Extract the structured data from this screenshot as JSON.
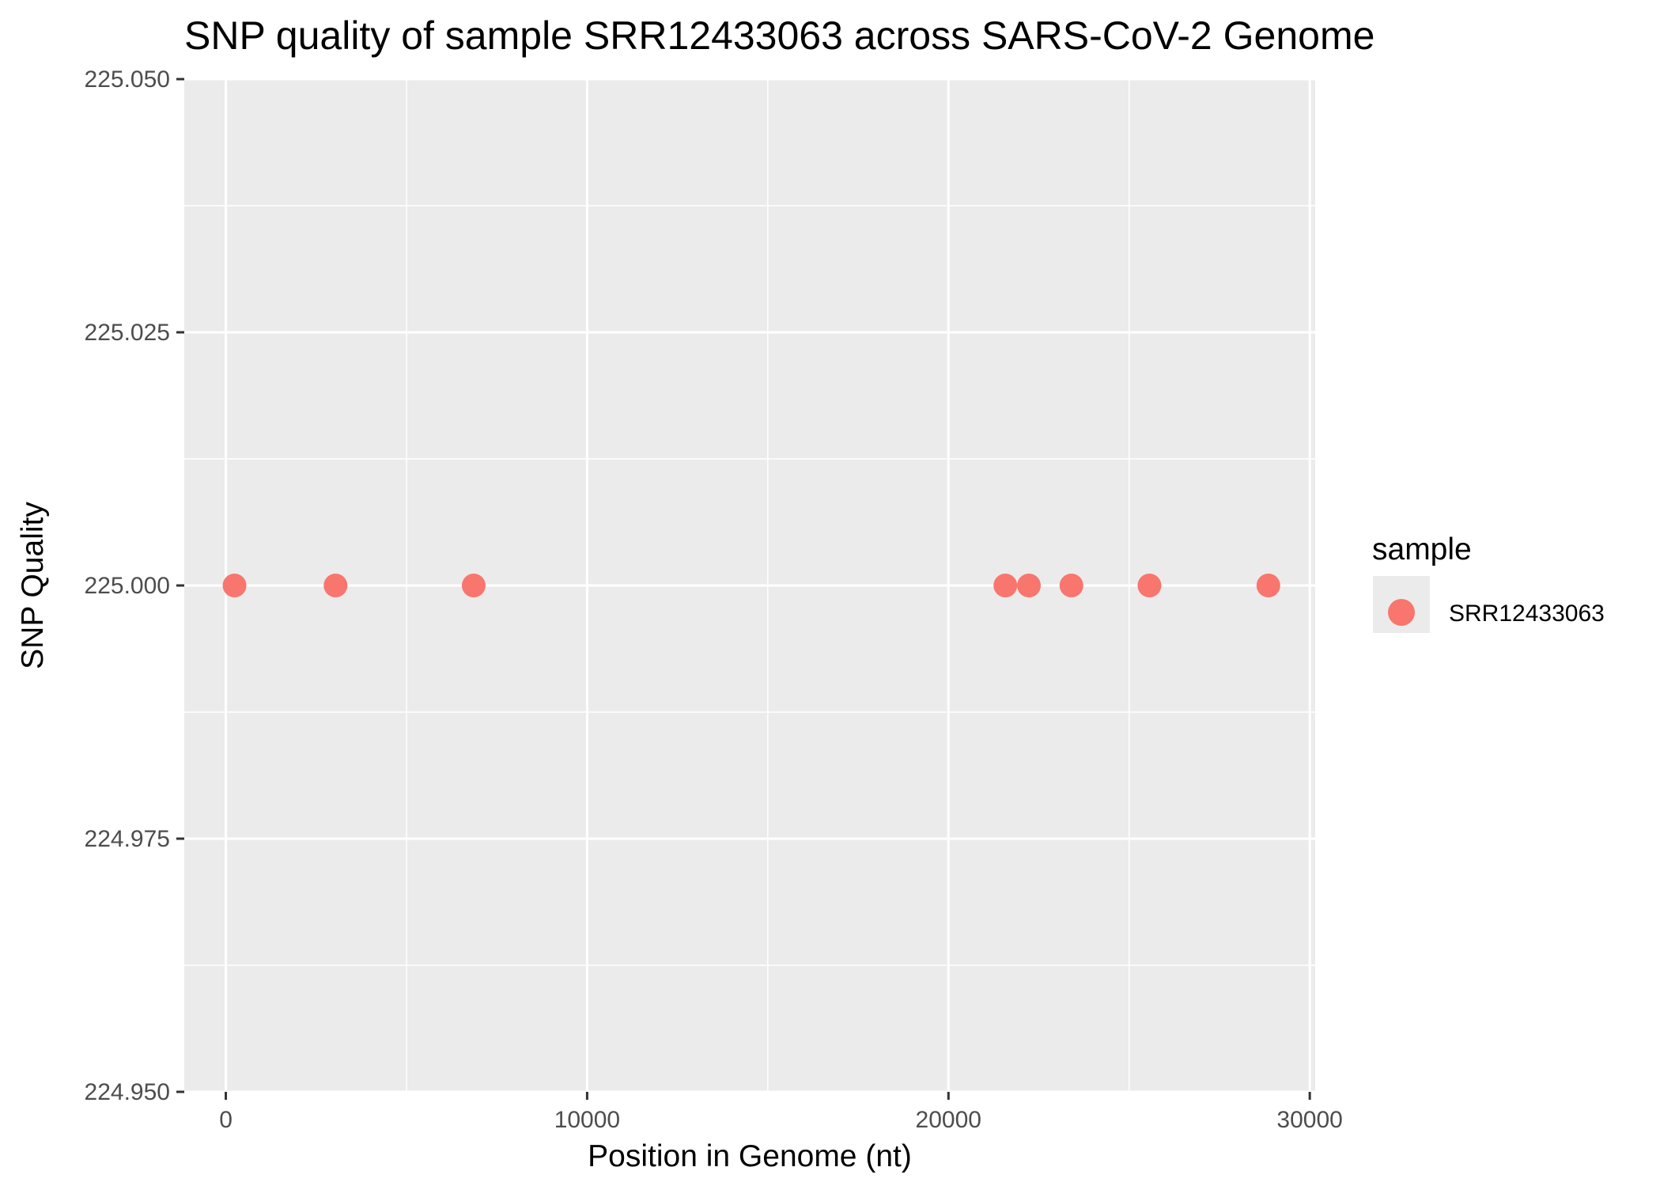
{
  "chart_data": {
    "type": "scatter",
    "title": "SNP quality of sample SRR12433063 across SARS-CoV-2 Genome",
    "xlabel": "Position in Genome (nt)",
    "ylabel": "SNP Quality",
    "xlim": [
      -1150,
      30150
    ],
    "ylim": [
      224.95,
      225.05
    ],
    "x_ticks": [
      0,
      10000,
      20000,
      30000
    ],
    "x_tick_labels": [
      "0",
      "10000",
      "20000",
      "30000"
    ],
    "x_minor_ticks": [
      5000,
      15000,
      25000
    ],
    "y_ticks": [
      224.95,
      224.975,
      225.0,
      225.025,
      225.05
    ],
    "y_tick_labels": [
      "224.950",
      "224.975",
      "225.000",
      "225.025",
      "225.050"
    ],
    "y_minor_ticks": [
      224.9625,
      224.9875,
      225.0125,
      225.0375
    ],
    "grid": true,
    "legend": {
      "title": "sample",
      "position": "right"
    },
    "series": [
      {
        "name": "SRR12433063",
        "color": "#F8766D",
        "x": [
          241,
          3037,
          6860,
          21575,
          22227,
          23403,
          25563,
          28854
        ],
        "y": [
          225,
          225,
          225,
          225,
          225,
          225,
          225,
          225
        ]
      }
    ]
  }
}
